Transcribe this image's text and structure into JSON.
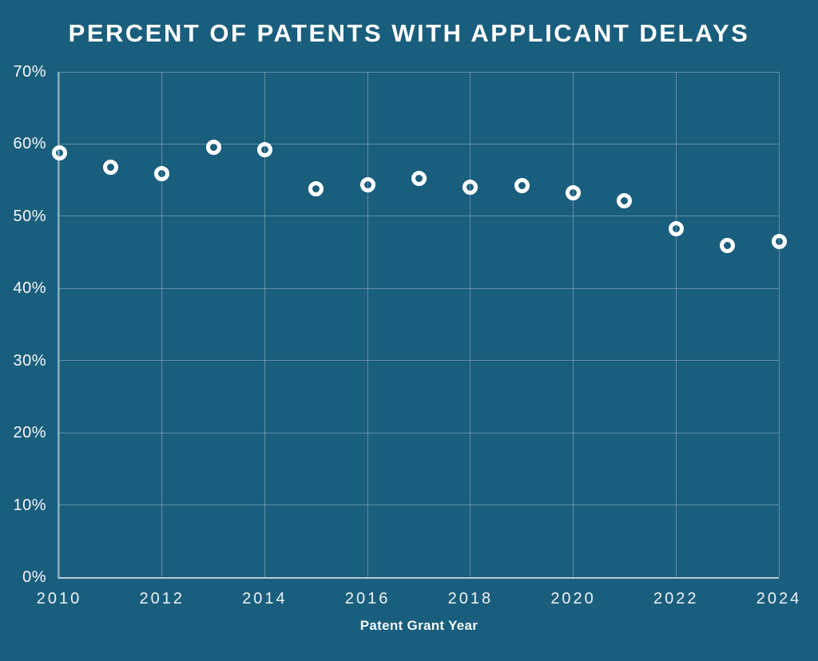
{
  "chart_data": {
    "type": "scatter",
    "title": "PERCENT OF PATENTS WITH APPLICANT DELAYS",
    "xlabel": "Patent Grant Year",
    "ylabel": "",
    "x": [
      2010,
      2011,
      2012,
      2013,
      2014,
      2015,
      2016,
      2017,
      2018,
      2019,
      2020,
      2021,
      2022,
      2023,
      2024
    ],
    "values": [
      58.8,
      56.8,
      55.9,
      59.6,
      59.2,
      53.8,
      54.4,
      55.2,
      54.0,
      54.2,
      53.3,
      52.1,
      48.3,
      45.9,
      46.5
    ],
    "series_name": "Percent of patents with applicant delays",
    "xlim": [
      2010,
      2024
    ],
    "ylim": [
      0,
      70
    ],
    "xticks": [
      2010,
      2012,
      2014,
      2016,
      2018,
      2020,
      2022,
      2024
    ],
    "xtick_labels": [
      "2010",
      "2012",
      "2014",
      "2016",
      "2018",
      "2020",
      "2022",
      "2024"
    ],
    "yticks": [
      0,
      10,
      20,
      30,
      40,
      50,
      60,
      70
    ],
    "ytick_labels": [
      "0%",
      "10%",
      "20%",
      "30%",
      "40%",
      "50%",
      "60%",
      "70%"
    ],
    "grid": true,
    "legend": false,
    "marker": {
      "shape": "open-circle",
      "color": "#FFFFFF"
    },
    "colors": {
      "background": "#1A5E7D",
      "gridline": "rgba(255,255,255,0.30)",
      "axis": "rgba(255,255,255,0.55)",
      "text": "#FFFFFF"
    }
  }
}
